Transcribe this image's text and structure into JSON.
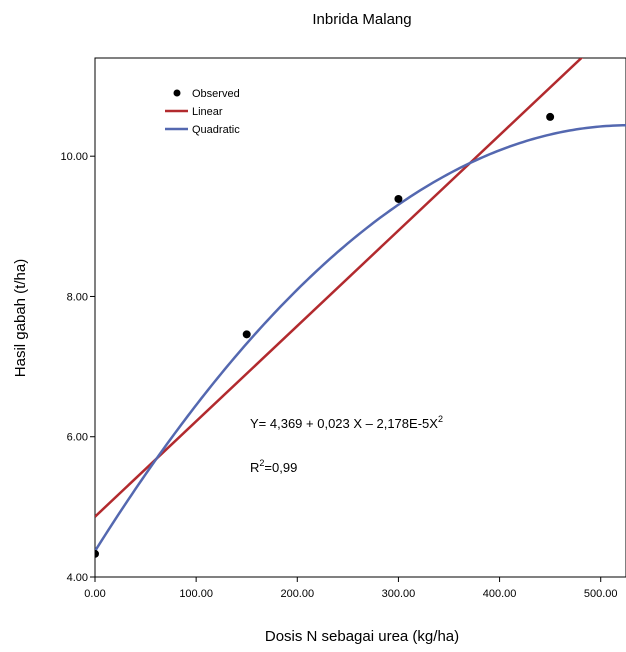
{
  "chart_data": {
    "type": "scatter",
    "title": "Inbrida Malang",
    "xlabel": "Dosis N sebagai urea (kg/ha)",
    "ylabel": "Hasil gabah (t/ha)",
    "xlim": [
      0,
      525
    ],
    "ylim": [
      4.0,
      11.4
    ],
    "xticks": [
      0,
      100,
      200,
      300,
      400,
      500
    ],
    "yticks": [
      4,
      6,
      8,
      10
    ],
    "xtick_labels": [
      "0.00",
      "100.00",
      "200.00",
      "300.00",
      "400.00",
      "500.00"
    ],
    "ytick_labels": [
      "4.00",
      "6.00",
      "8.00",
      "10.00"
    ],
    "legend_position": "top-left",
    "grid": false,
    "series": [
      {
        "name": "Observed",
        "kind": "points",
        "color": "#000000",
        "x": [
          0,
          150,
          300,
          450
        ],
        "y": [
          4.33,
          7.46,
          9.39,
          10.56
        ]
      },
      {
        "name": "Linear",
        "kind": "line",
        "color": "#b22a2e",
        "intercept": 4.86,
        "slope": 0.0136
      },
      {
        "name": "Quadratic",
        "kind": "curve",
        "color": "#5468b0",
        "c0": 4.369,
        "c1": 0.023,
        "c2": -2.178e-05
      }
    ],
    "annotations": {
      "equation_main": "Y= 4,369 + 0,023 X – 2,178E-5X",
      "equation_sup": "2",
      "r2_main_left": "R",
      "r2_sup": "2",
      "r2_main_right": "=0,99"
    }
  }
}
